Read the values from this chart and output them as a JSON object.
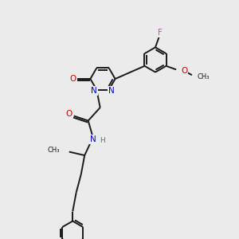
{
  "bg_color": "#ebebeb",
  "bond_color": "#1a1a1a",
  "n_color": "#0000cc",
  "o_color": "#cc0000",
  "f_color": "#cc44cc",
  "h_color": "#009999",
  "lw": 1.4,
  "xlim": [
    0,
    10
  ],
  "ylim": [
    0,
    10
  ]
}
